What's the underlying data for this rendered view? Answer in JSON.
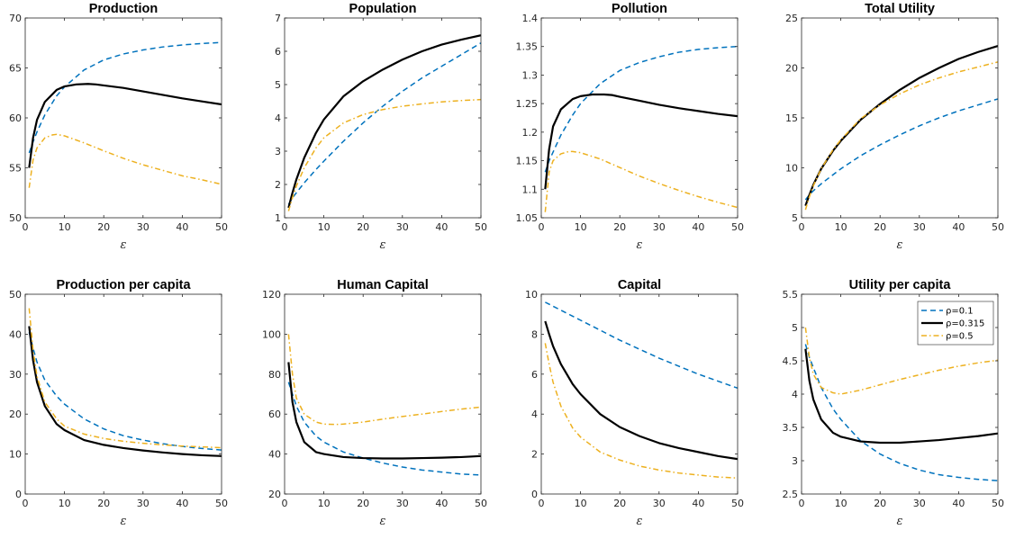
{
  "chart_data": [
    {
      "type": "line",
      "title": "Production",
      "xlabel": "ε",
      "ylabel": "",
      "xlim": [
        0,
        50
      ],
      "ylim": [
        50,
        70
      ],
      "xticks": [
        0,
        10,
        20,
        30,
        40,
        50
      ],
      "yticks": [
        50,
        55,
        60,
        65,
        70
      ],
      "series": [
        {
          "name": "ρ=0.1",
          "x": [
            1,
            2,
            3,
            5,
            8,
            10,
            15,
            20,
            25,
            30,
            35,
            40,
            45,
            50
          ],
          "y": [
            56.5,
            57.6,
            58.6,
            60.3,
            62.2,
            63.1,
            64.8,
            65.8,
            66.4,
            66.8,
            67.1,
            67.3,
            67.45,
            67.55
          ]
        },
        {
          "name": "ρ=0.315",
          "x": [
            1,
            2,
            3,
            5,
            8,
            10,
            13,
            16,
            18,
            20,
            25,
            30,
            35,
            40,
            45,
            50
          ],
          "y": [
            55.0,
            58.0,
            59.8,
            61.6,
            62.8,
            63.15,
            63.35,
            63.4,
            63.35,
            63.25,
            63.0,
            62.65,
            62.3,
            61.95,
            61.65,
            61.35
          ]
        },
        {
          "name": "ρ=0.5",
          "x": [
            1,
            2,
            3,
            5,
            7,
            8,
            10,
            15,
            20,
            25,
            30,
            35,
            40,
            45,
            50
          ],
          "y": [
            53.0,
            55.8,
            57.0,
            58.0,
            58.3,
            58.35,
            58.2,
            57.5,
            56.7,
            55.95,
            55.3,
            54.75,
            54.2,
            53.8,
            53.35
          ]
        }
      ]
    },
    {
      "type": "line",
      "title": "Population",
      "xlabel": "ε",
      "ylabel": "",
      "xlim": [
        0,
        50
      ],
      "ylim": [
        1,
        7
      ],
      "xticks": [
        0,
        10,
        20,
        30,
        40,
        50
      ],
      "yticks": [
        1,
        2,
        3,
        4,
        5,
        6,
        7
      ],
      "series": [
        {
          "name": "ρ=0.1",
          "x": [
            1,
            2,
            3,
            5,
            8,
            10,
            15,
            20,
            25,
            30,
            35,
            40,
            45,
            50
          ],
          "y": [
            1.4,
            1.6,
            1.75,
            2.05,
            2.45,
            2.7,
            3.3,
            3.85,
            4.35,
            4.8,
            5.2,
            5.55,
            5.9,
            6.25
          ]
        },
        {
          "name": "ρ=0.315",
          "x": [
            1,
            2,
            3,
            5,
            8,
            10,
            15,
            20,
            25,
            30,
            35,
            40,
            45,
            50
          ],
          "y": [
            1.3,
            1.75,
            2.15,
            2.8,
            3.55,
            3.95,
            4.65,
            5.1,
            5.45,
            5.75,
            6.0,
            6.2,
            6.35,
            6.48
          ]
        },
        {
          "name": "ρ=0.5",
          "x": [
            1,
            2,
            3,
            5,
            8,
            10,
            15,
            20,
            25,
            30,
            35,
            40,
            45,
            50
          ],
          "y": [
            1.2,
            1.6,
            1.95,
            2.5,
            3.1,
            3.4,
            3.85,
            4.1,
            4.25,
            4.35,
            4.42,
            4.48,
            4.52,
            4.55
          ]
        }
      ]
    },
    {
      "type": "line",
      "title": "Pollution",
      "xlabel": "ε",
      "ylabel": "",
      "xlim": [
        0,
        50
      ],
      "ylim": [
        1.05,
        1.4
      ],
      "xticks": [
        0,
        10,
        20,
        30,
        40,
        50
      ],
      "yticks": [
        1.05,
        1.1,
        1.15,
        1.2,
        1.25,
        1.3,
        1.35,
        1.4
      ],
      "series": [
        {
          "name": "ρ=0.1",
          "x": [
            1,
            2,
            3,
            5,
            8,
            10,
            15,
            20,
            25,
            30,
            35,
            40,
            45,
            50
          ],
          "y": [
            1.13,
            1.15,
            1.165,
            1.195,
            1.23,
            1.25,
            1.285,
            1.308,
            1.322,
            1.332,
            1.34,
            1.345,
            1.348,
            1.35
          ]
        },
        {
          "name": "ρ=0.315",
          "x": [
            1,
            2,
            3,
            5,
            8,
            10,
            13,
            16,
            18,
            20,
            25,
            30,
            35,
            40,
            45,
            50
          ],
          "y": [
            1.1,
            1.17,
            1.21,
            1.24,
            1.258,
            1.263,
            1.266,
            1.266,
            1.265,
            1.262,
            1.255,
            1.248,
            1.242,
            1.237,
            1.232,
            1.228
          ]
        },
        {
          "name": "ρ=0.5",
          "x": [
            1,
            2,
            3,
            5,
            7,
            8,
            10,
            15,
            20,
            25,
            30,
            35,
            40,
            45,
            50
          ],
          "y": [
            1.06,
            1.13,
            1.15,
            1.162,
            1.166,
            1.166,
            1.164,
            1.153,
            1.138,
            1.123,
            1.11,
            1.098,
            1.087,
            1.077,
            1.068
          ]
        }
      ]
    },
    {
      "type": "line",
      "title": "Total Utility",
      "xlabel": "ε",
      "ylabel": "",
      "xlim": [
        0,
        50
      ],
      "ylim": [
        5,
        25
      ],
      "xticks": [
        0,
        10,
        20,
        30,
        40,
        50
      ],
      "yticks": [
        5,
        10,
        15,
        20,
        25
      ],
      "series": [
        {
          "name": "ρ=0.1",
          "x": [
            1,
            2,
            3,
            5,
            8,
            10,
            15,
            20,
            25,
            30,
            35,
            40,
            45,
            50
          ],
          "y": [
            6.8,
            7.3,
            7.7,
            8.4,
            9.3,
            9.9,
            11.2,
            12.3,
            13.3,
            14.2,
            15.0,
            15.7,
            16.3,
            16.9
          ]
        },
        {
          "name": "ρ=0.315",
          "x": [
            1,
            2,
            3,
            5,
            8,
            10,
            15,
            20,
            25,
            30,
            35,
            40,
            45,
            50
          ],
          "y": [
            6.2,
            7.3,
            8.3,
            9.9,
            11.7,
            12.7,
            14.8,
            16.4,
            17.8,
            19.0,
            20.0,
            20.9,
            21.6,
            22.2
          ]
        },
        {
          "name": "ρ=0.5",
          "x": [
            1,
            2,
            3,
            5,
            8,
            10,
            15,
            20,
            25,
            30,
            35,
            40,
            45,
            50
          ],
          "y": [
            5.8,
            7.1,
            8.2,
            9.9,
            11.8,
            12.8,
            14.9,
            16.3,
            17.4,
            18.3,
            19.0,
            19.6,
            20.1,
            20.6
          ]
        }
      ]
    },
    {
      "type": "line",
      "title": "Production per capita",
      "xlabel": "ε",
      "ylabel": "",
      "xlim": [
        0,
        50
      ],
      "ylim": [
        0,
        50
      ],
      "xticks": [
        0,
        10,
        20,
        30,
        40,
        50
      ],
      "yticks": [
        0,
        10,
        20,
        30,
        40,
        50
      ],
      "series": [
        {
          "name": "ρ=0.1",
          "x": [
            1,
            2,
            3,
            5,
            8,
            10,
            15,
            20,
            25,
            30,
            35,
            40,
            45,
            50
          ],
          "y": [
            40.5,
            36.5,
            33.0,
            28.5,
            24.5,
            22.5,
            18.8,
            16.3,
            14.6,
            13.5,
            12.6,
            11.9,
            11.4,
            11.0
          ]
        },
        {
          "name": "ρ=0.315",
          "x": [
            1,
            2,
            3,
            5,
            8,
            10,
            15,
            20,
            25,
            30,
            35,
            40,
            45,
            50
          ],
          "y": [
            42.0,
            33.5,
            28.0,
            22.0,
            17.5,
            16.0,
            13.5,
            12.3,
            11.5,
            10.9,
            10.4,
            10.0,
            9.7,
            9.5
          ]
        },
        {
          "name": "ρ=0.5",
          "x": [
            1,
            2,
            3,
            5,
            8,
            10,
            15,
            20,
            25,
            30,
            35,
            40,
            45,
            50
          ],
          "y": [
            46.5,
            36.0,
            29.5,
            23.0,
            18.8,
            17.0,
            15.0,
            13.9,
            13.2,
            12.7,
            12.3,
            12.0,
            11.8,
            11.6
          ]
        }
      ]
    },
    {
      "type": "line",
      "title": "Human Capital",
      "xlabel": "ε",
      "ylabel": "",
      "xlim": [
        0,
        50
      ],
      "ylim": [
        20,
        120
      ],
      "xticks": [
        0,
        10,
        20,
        30,
        40,
        50
      ],
      "yticks": [
        20,
        40,
        60,
        80,
        100,
        120
      ],
      "series": [
        {
          "name": "ρ=0.1",
          "x": [
            1,
            2,
            3,
            5,
            8,
            10,
            15,
            20,
            25,
            30,
            35,
            40,
            45,
            50
          ],
          "y": [
            76.0,
            70.0,
            64.0,
            56.0,
            49.0,
            46.0,
            41.0,
            38.0,
            35.5,
            33.5,
            32.0,
            31.0,
            30.0,
            29.5
          ]
        },
        {
          "name": "ρ=0.315",
          "x": [
            1,
            2,
            3,
            5,
            8,
            10,
            15,
            20,
            25,
            30,
            35,
            40,
            45,
            50
          ],
          "y": [
            86.0,
            66.0,
            56.0,
            46.0,
            41.0,
            40.0,
            38.5,
            38.0,
            37.8,
            37.8,
            38.0,
            38.2,
            38.5,
            39.0
          ]
        },
        {
          "name": "ρ=0.5",
          "x": [
            1,
            2,
            3,
            5,
            8,
            10,
            13,
            15,
            20,
            25,
            30,
            35,
            40,
            45,
            50
          ],
          "y": [
            100.0,
            80.0,
            68.0,
            60.0,
            56.0,
            55.0,
            54.8,
            55.0,
            56.0,
            57.5,
            58.8,
            60.0,
            61.3,
            62.5,
            63.5
          ]
        }
      ]
    },
    {
      "type": "line",
      "title": "Capital",
      "xlabel": "ε",
      "ylabel": "",
      "xlim": [
        0,
        50
      ],
      "ylim": [
        0,
        10
      ],
      "xticks": [
        0,
        10,
        20,
        30,
        40,
        50
      ],
      "yticks": [
        0,
        2,
        4,
        6,
        8,
        10
      ],
      "series": [
        {
          "name": "ρ=0.1",
          "x": [
            1,
            2,
            3,
            5,
            8,
            10,
            15,
            20,
            25,
            30,
            35,
            40,
            45,
            50
          ],
          "y": [
            9.6,
            9.5,
            9.4,
            9.2,
            8.9,
            8.7,
            8.2,
            7.7,
            7.25,
            6.8,
            6.4,
            6.0,
            5.65,
            5.3
          ]
        },
        {
          "name": "ρ=0.315",
          "x": [
            1,
            2,
            3,
            5,
            8,
            10,
            15,
            20,
            25,
            30,
            35,
            40,
            45,
            50
          ],
          "y": [
            8.65,
            8.0,
            7.4,
            6.5,
            5.5,
            5.0,
            4.0,
            3.35,
            2.9,
            2.55,
            2.3,
            2.1,
            1.9,
            1.75
          ]
        },
        {
          "name": "ρ=0.5",
          "x": [
            1,
            2,
            3,
            5,
            8,
            10,
            15,
            20,
            25,
            30,
            35,
            40,
            45,
            50
          ],
          "y": [
            7.55,
            6.5,
            5.6,
            4.4,
            3.3,
            2.85,
            2.1,
            1.7,
            1.4,
            1.2,
            1.05,
            0.95,
            0.85,
            0.8
          ]
        }
      ]
    },
    {
      "type": "line",
      "title": "Utility per capita",
      "xlabel": "ε",
      "ylabel": "",
      "xlim": [
        0,
        50
      ],
      "ylim": [
        2.5,
        5.5
      ],
      "xticks": [
        0,
        10,
        20,
        30,
        40,
        50
      ],
      "yticks": [
        2.5,
        3,
        3.5,
        4,
        4.5,
        5,
        5.5
      ],
      "legend": "top-right",
      "series": [
        {
          "name": "ρ=0.1",
          "x": [
            1,
            2,
            3,
            5,
            8,
            10,
            15,
            20,
            25,
            30,
            35,
            40,
            45,
            50
          ],
          "y": [
            4.75,
            4.55,
            4.4,
            4.1,
            3.78,
            3.62,
            3.3,
            3.1,
            2.96,
            2.86,
            2.79,
            2.75,
            2.72,
            2.7
          ]
        },
        {
          "name": "ρ=0.315",
          "x": [
            1,
            2,
            3,
            5,
            8,
            10,
            15,
            20,
            25,
            30,
            35,
            40,
            45,
            50
          ],
          "y": [
            4.68,
            4.2,
            3.92,
            3.62,
            3.42,
            3.36,
            3.29,
            3.27,
            3.27,
            3.29,
            3.31,
            3.34,
            3.37,
            3.41
          ]
        },
        {
          "name": "ρ=0.5",
          "x": [
            1,
            2,
            3,
            5,
            8,
            10,
            15,
            20,
            25,
            30,
            35,
            40,
            45,
            50
          ],
          "y": [
            5.0,
            4.55,
            4.3,
            4.1,
            4.02,
            4.0,
            4.06,
            4.14,
            4.22,
            4.29,
            4.36,
            4.42,
            4.47,
            4.51
          ]
        }
      ]
    }
  ],
  "series_styles": [
    {
      "color": "#0072BD",
      "dash": "dashed"
    },
    {
      "color": "#000000",
      "dash": "solid"
    },
    {
      "color": "#EDB120",
      "dash": "dashdot"
    }
  ]
}
